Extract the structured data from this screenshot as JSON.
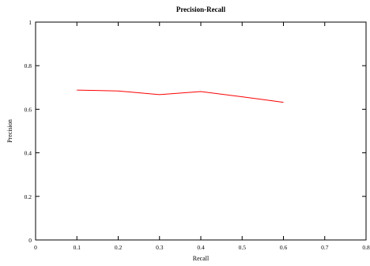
{
  "chart_data": {
    "type": "line",
    "title": "Precision-Recall",
    "xlabel": "Recall",
    "ylabel": "Precision",
    "xlim": [
      0,
      0.8
    ],
    "ylim": [
      0,
      1
    ],
    "x_ticks": [
      "0",
      "0.1",
      "0.2",
      "0.3",
      "0.4",
      "0.5",
      "0.6",
      "0.7",
      "0.8"
    ],
    "y_ticks": [
      "0",
      "0.2",
      "0.4",
      "0.6",
      "0.8",
      "1"
    ],
    "grid": false,
    "legend": "none",
    "series": [
      {
        "color": "#ff0000",
        "x": [
          0.1,
          0.2,
          0.3,
          0.4,
          0.5,
          0.6
        ],
        "y": [
          0.688,
          0.684,
          0.667,
          0.681,
          0.657,
          0.632
        ]
      }
    ]
  }
}
